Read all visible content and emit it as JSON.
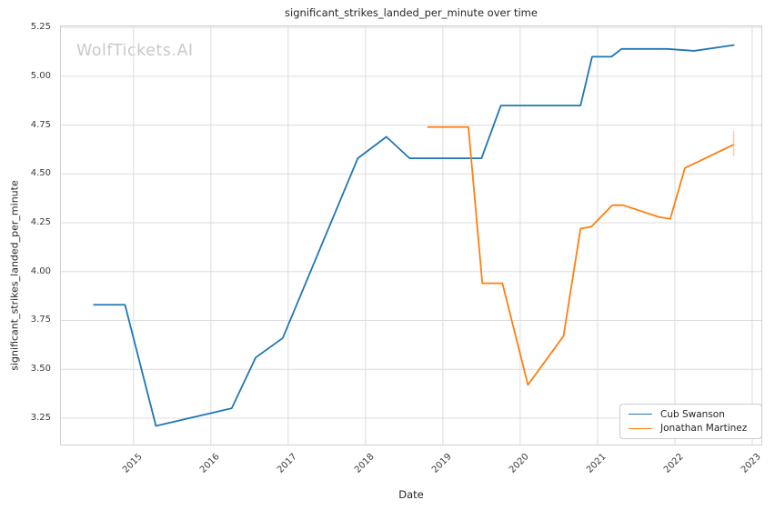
{
  "watermark": "WolfTickets.AI",
  "chart_data": {
    "type": "line",
    "title": "significant_strikes_landed_per_minute over time",
    "xlabel": "Date",
    "ylabel": "significant_strikes_landed_per_minute",
    "x_unit": "decimal_year",
    "grid": true,
    "legend_position": "lower right",
    "xlim": [
      2014.05,
      2023.13
    ],
    "ylim": [
      3.11,
      5.26
    ],
    "x_ticks": [
      2015,
      2016,
      2017,
      2018,
      2019,
      2020,
      2021,
      2022,
      2023
    ],
    "y_ticks": [
      3.25,
      3.5,
      3.75,
      4.0,
      4.25,
      4.5,
      4.75,
      5.0,
      5.25
    ],
    "y_tick_labels": [
      "3.25",
      "3.50",
      "3.75",
      "4.00",
      "4.25",
      "4.50",
      "4.75",
      "5.00",
      "5.25"
    ],
    "series": [
      {
        "name": "Cub Swanson",
        "color": "#1f77b4",
        "x": [
          2014.48,
          2014.89,
          2015.29,
          2016.27,
          2016.58,
          2016.93,
          2017.9,
          2018.27,
          2018.57,
          2019.5,
          2019.75,
          2020.78,
          2020.93,
          2021.18,
          2021.31,
          2021.9,
          2022.25,
          2022.77
        ],
        "y": [
          3.83,
          3.83,
          3.21,
          3.3,
          3.56,
          3.66,
          4.58,
          4.69,
          4.58,
          4.58,
          4.85,
          4.85,
          5.1,
          5.1,
          5.14,
          5.14,
          5.13,
          5.16
        ]
      },
      {
        "name": "Jonathan Martinez",
        "color": "#ff7f0e",
        "x": [
          2018.8,
          2019.33,
          2019.51,
          2019.77,
          2020.1,
          2020.56,
          2020.78,
          2020.92,
          2021.19,
          2021.33,
          2021.79,
          2021.94,
          2022.13,
          2022.76
        ],
        "y": [
          4.74,
          4.74,
          3.94,
          3.94,
          3.42,
          3.67,
          4.22,
          4.23,
          4.34,
          4.34,
          4.28,
          4.27,
          4.53,
          4.65
        ],
        "end_marker": {
          "x": 2022.76,
          "y_low": 4.59,
          "y_high": 4.72
        }
      }
    ],
    "style": {
      "grid_color": "#dcdcdc",
      "spine_color": "#d0d0d0",
      "background": "#ffffff"
    }
  }
}
